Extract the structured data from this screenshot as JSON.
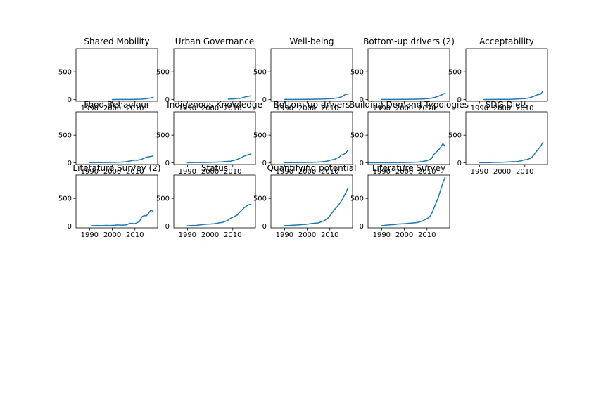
{
  "figure": {
    "line_color": "#1f77b4"
  },
  "chart_data": [
    {
      "type": "line",
      "title": "Shared Mobility",
      "xlim": [
        1984,
        2020
      ],
      "ylim": [
        -30,
        920
      ],
      "xticks": [
        1990,
        2000,
        2010
      ],
      "yticks": [
        0,
        500
      ],
      "grid": false,
      "series": [
        {
          "x": [
            2000,
            2003,
            2006,
            2009,
            2011,
            2013,
            2015,
            2016,
            2017,
            2018
          ],
          "y": [
            2,
            3,
            3,
            4,
            6,
            8,
            16,
            24,
            30,
            42
          ]
        }
      ]
    },
    {
      "type": "line",
      "title": "Urban Governance",
      "xlim": [
        1984,
        2020
      ],
      "ylim": [
        -30,
        920
      ],
      "xticks": [
        1990,
        2000,
        2010
      ],
      "yticks": [
        0,
        500
      ],
      "grid": false,
      "series": [
        {
          "x": [
            2008,
            2010,
            2011,
            2012,
            2013,
            2014,
            2015,
            2016,
            2017,
            2018
          ],
          "y": [
            8,
            12,
            14,
            22,
            20,
            30,
            42,
            52,
            60,
            68
          ]
        }
      ]
    },
    {
      "type": "line",
      "title": "Well-being",
      "xlim": [
        1984,
        2020
      ],
      "ylim": [
        -30,
        920
      ],
      "xticks": [
        1990,
        2000,
        2010
      ],
      "yticks": [
        0,
        500
      ],
      "grid": false,
      "series": [
        {
          "x": [
            1990,
            1995,
            2000,
            2004,
            2007,
            2009,
            2011,
            2013,
            2014,
            2015,
            2016,
            2017,
            2018
          ],
          "y": [
            3,
            4,
            5,
            8,
            10,
            14,
            18,
            28,
            35,
            48,
            72,
            95,
            98
          ]
        }
      ]
    },
    {
      "type": "line",
      "title": "Bottom-up drivers (2)",
      "xlim": [
        1984,
        2020
      ],
      "ylim": [
        -30,
        920
      ],
      "xticks": [
        1990,
        2000,
        2010
      ],
      "yticks": [
        0,
        500
      ],
      "grid": false,
      "series": [
        {
          "x": [
            1990,
            1995,
            2000,
            2004,
            2007,
            2009,
            2011,
            2013,
            2014,
            2015,
            2016,
            2017,
            2018
          ],
          "y": [
            3,
            4,
            5,
            6,
            9,
            12,
            20,
            35,
            45,
            60,
            78,
            95,
            115
          ]
        }
      ]
    },
    {
      "type": "line",
      "title": "Acceptability",
      "xlim": [
        1984,
        2020
      ],
      "ylim": [
        -30,
        920
      ],
      "xticks": [
        1990,
        2000,
        2010
      ],
      "yticks": [
        0,
        500
      ],
      "grid": false,
      "series": [
        {
          "x": [
            1992,
            1996,
            2000,
            2003,
            2006,
            2008,
            2010,
            2012,
            2013,
            2014,
            2015,
            2016,
            2017,
            2018
          ],
          "y": [
            2,
            3,
            5,
            4,
            10,
            14,
            18,
            30,
            45,
            60,
            80,
            90,
            100,
            155
          ]
        }
      ]
    },
    {
      "type": "line",
      "title": "Food Behaviour",
      "xlim": [
        1984,
        2020
      ],
      "ylim": [
        -30,
        920
      ],
      "xticks": [
        1990,
        2000,
        2010
      ],
      "yticks": [
        0,
        500
      ],
      "grid": false,
      "series": [
        {
          "x": [
            1990,
            1994,
            1998,
            2001,
            2004,
            2006,
            2008,
            2009,
            2010,
            2011,
            2012,
            2013,
            2014,
            2015,
            2016,
            2017,
            2018
          ],
          "y": [
            3,
            5,
            6,
            8,
            14,
            20,
            35,
            45,
            50,
            45,
            55,
            65,
            85,
            100,
            110,
            115,
            125
          ]
        }
      ]
    },
    {
      "type": "line",
      "title": "Indigenous Knowledge",
      "xlim": [
        1984,
        2020
      ],
      "ylim": [
        -30,
        920
      ],
      "xticks": [
        1990,
        2000,
        2010
      ],
      "yticks": [
        0,
        500
      ],
      "grid": false,
      "series": [
        {
          "x": [
            1990,
            1993,
            1996,
            1999,
            2002,
            2005,
            2007,
            2009,
            2010,
            2011,
            2012,
            2013,
            2014,
            2015,
            2016,
            2017,
            2018
          ],
          "y": [
            4,
            6,
            6,
            8,
            12,
            18,
            25,
            30,
            40,
            50,
            62,
            80,
            100,
            120,
            135,
            150,
            160
          ]
        }
      ]
    },
    {
      "type": "line",
      "title": "Bottom-up drivers",
      "xlim": [
        1984,
        2020
      ],
      "ylim": [
        -30,
        920
      ],
      "xticks": [
        1990,
        2000,
        2010
      ],
      "yticks": [
        0,
        500
      ],
      "grid": false,
      "series": [
        {
          "x": [
            1990,
            1994,
            1998,
            2001,
            2004,
            2006,
            2008,
            2009,
            2010,
            2011,
            2012,
            2013,
            2014,
            2015,
            2016,
            2017,
            2018
          ],
          "y": [
            3,
            5,
            6,
            8,
            12,
            18,
            25,
            35,
            45,
            55,
            62,
            85,
            100,
            140,
            150,
            180,
            225
          ]
        }
      ]
    },
    {
      "type": "line",
      "title": "Building Demand Typologies",
      "xlim": [
        1984,
        2020
      ],
      "ylim": [
        -30,
        920
      ],
      "xticks": [
        1990,
        2000,
        2010
      ],
      "yticks": [
        0,
        500
      ],
      "grid": false,
      "series": [
        {
          "x": [
            1984,
            1988,
            1992,
            1996,
            2000,
            2003,
            2006,
            2008,
            2010,
            2011,
            2012,
            2013,
            2014,
            2015,
            2016,
            2017,
            2018
          ],
          "y": [
            2,
            3,
            4,
            4,
            6,
            10,
            15,
            25,
            40,
            55,
            80,
            150,
            190,
            230,
            280,
            345,
            300
          ]
        }
      ]
    },
    {
      "type": "line",
      "title": "SDG Diets",
      "xlim": [
        1984,
        2020
      ],
      "ylim": [
        -30,
        920
      ],
      "xticks": [
        1990,
        2000,
        2010
      ],
      "yticks": [
        0,
        500
      ],
      "grid": false,
      "series": [
        {
          "x": [
            1990,
            1993,
            1996,
            1999,
            2001,
            2003,
            2005,
            2006,
            2007,
            2008,
            2009,
            2010,
            2011,
            2012,
            2013,
            2014,
            2015,
            2016,
            2017,
            2018
          ],
          "y": [
            3,
            4,
            8,
            10,
            12,
            18,
            22,
            20,
            25,
            35,
            45,
            55,
            60,
            75,
            95,
            145,
            200,
            250,
            300,
            370
          ]
        }
      ]
    },
    {
      "type": "line",
      "title": "Literature Survey (2)",
      "xlim": [
        1984,
        2020
      ],
      "ylim": [
        -30,
        920
      ],
      "xticks": [
        1990,
        2000,
        2010
      ],
      "yticks": [
        0,
        500
      ],
      "grid": false,
      "series": [
        {
          "x": [
            1991,
            1993,
            1995,
            1997,
            1999,
            2001,
            2002,
            2004,
            2006,
            2007,
            2008,
            2009,
            2010,
            2011,
            2012,
            2013,
            2014,
            2015,
            2016,
            2017,
            2018
          ],
          "y": [
            8,
            12,
            10,
            14,
            12,
            16,
            22,
            18,
            22,
            38,
            52,
            48,
            45,
            65,
            85,
            165,
            190,
            185,
            230,
            290,
            265
          ]
        }
      ]
    },
    {
      "type": "line",
      "title": "Status",
      "xlim": [
        1984,
        2020
      ],
      "ylim": [
        -30,
        920
      ],
      "xticks": [
        1990,
        2000,
        2010
      ],
      "yticks": [
        0,
        500
      ],
      "grid": false,
      "series": [
        {
          "x": [
            1990,
            1992,
            1994,
            1996,
            1997,
            1998,
            2000,
            2001,
            2002,
            2003,
            2004,
            2005,
            2006,
            2007,
            2008,
            2009,
            2010,
            2011,
            2012,
            2013,
            2014,
            2015,
            2016,
            2017,
            2018
          ],
          "y": [
            8,
            12,
            15,
            25,
            30,
            35,
            38,
            42,
            45,
            52,
            60,
            65,
            75,
            90,
            110,
            140,
            160,
            180,
            200,
            250,
            290,
            330,
            360,
            385,
            395
          ]
        }
      ]
    },
    {
      "type": "line",
      "title": "Quantifying potential",
      "xlim": [
        1984,
        2020
      ],
      "ylim": [
        -30,
        920
      ],
      "xticks": [
        1990,
        2000,
        2010
      ],
      "yticks": [
        0,
        500
      ],
      "grid": false,
      "series": [
        {
          "x": [
            1990,
            1992,
            1994,
            1996,
            1998,
            2000,
            2001,
            2002,
            2003,
            2004,
            2005,
            2006,
            2007,
            2008,
            2009,
            2010,
            2011,
            2012,
            2013,
            2014,
            2015,
            2016,
            2017,
            2018
          ],
          "y": [
            10,
            12,
            18,
            22,
            28,
            35,
            42,
            48,
            52,
            56,
            60,
            75,
            90,
            110,
            140,
            185,
            240,
            300,
            340,
            390,
            450,
            520,
            600,
            690
          ]
        }
      ]
    },
    {
      "type": "line",
      "title": "Literature Survey",
      "xlim": [
        1984,
        2020
      ],
      "ylim": [
        -30,
        920
      ],
      "xticks": [
        1990,
        2000,
        2010
      ],
      "yticks": [
        0,
        500
      ],
      "grid": false,
      "series": [
        {
          "x": [
            1990,
            1992,
            1994,
            1996,
            1997,
            1998,
            2000,
            2001,
            2002,
            2003,
            2004,
            2005,
            2006,
            2007,
            2008,
            2009,
            2010,
            2011,
            2012,
            2013,
            2014,
            2015,
            2016,
            2017,
            2018
          ],
          "y": [
            10,
            18,
            25,
            30,
            38,
            40,
            45,
            48,
            52,
            55,
            58,
            62,
            70,
            80,
            95,
            115,
            135,
            160,
            220,
            320,
            420,
            520,
            650,
            780,
            880
          ]
        }
      ]
    }
  ]
}
